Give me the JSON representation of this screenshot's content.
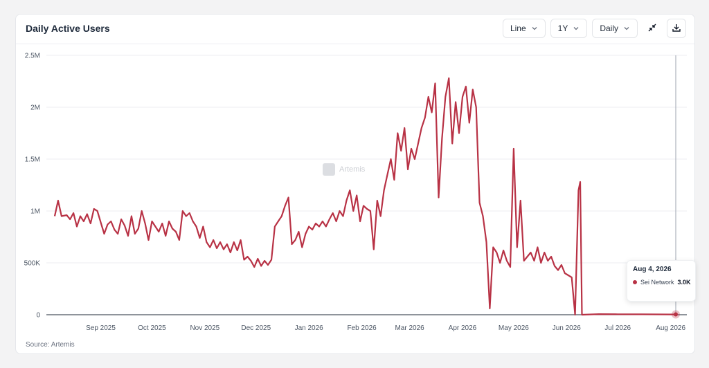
{
  "card": {
    "title": "Daily Active Users",
    "source": "Source: Artemis"
  },
  "controls": {
    "chart_type": "Line",
    "range": "1Y",
    "granularity": "Daily",
    "collapse_icon": "collapse-arrows-icon",
    "download_icon": "download-icon"
  },
  "tooltip": {
    "date": "Aug 4, 2026",
    "series": "Sei Network",
    "value": "3.0K"
  },
  "watermark": "Artemis",
  "colors": {
    "series": "#b83245",
    "grid": "#eceef1",
    "axis_text": "#4b5563"
  },
  "chart_data": {
    "type": "line",
    "title": "Daily Active Users",
    "xlabel": "",
    "ylabel": "",
    "ylim": [
      0,
      2500000
    ],
    "y_ticks": [
      {
        "value": 0,
        "label": "0"
      },
      {
        "value": 500000,
        "label": "500K"
      },
      {
        "value": 1000000,
        "label": "1M"
      },
      {
        "value": 1500000,
        "label": "1.5M"
      },
      {
        "value": 2000000,
        "label": "2M"
      },
      {
        "value": 2500000,
        "label": "2.5M"
      }
    ],
    "x_range": [
      "2025-08-05",
      "2026-08-04"
    ],
    "x_ticks": [
      {
        "date": "2025-09-01",
        "label": "Sep 2025"
      },
      {
        "date": "2025-10-01",
        "label": "Oct 2025"
      },
      {
        "date": "2025-11-01",
        "label": "Nov 2025"
      },
      {
        "date": "2025-12-01",
        "label": "Dec 2025"
      },
      {
        "date": "2026-01-01",
        "label": "Jan 2026"
      },
      {
        "date": "2026-02-01",
        "label": "Feb 2026"
      },
      {
        "date": "2026-03-01",
        "label": "Mar 2026"
      },
      {
        "date": "2026-04-01",
        "label": "Apr 2026"
      },
      {
        "date": "2026-05-01",
        "label": "May 2026"
      },
      {
        "date": "2026-06-01",
        "label": "Jun 2026"
      },
      {
        "date": "2026-07-01",
        "label": "Jul 2026"
      },
      {
        "date": "2026-08-01",
        "label": "Aug 2026"
      }
    ],
    "grid": true,
    "legend": "none",
    "series": [
      {
        "name": "Sei Network",
        "color": "#b83245",
        "points": [
          [
            "2025-08-05",
            950000
          ],
          [
            "2025-08-07",
            1100000
          ],
          [
            "2025-08-09",
            950000
          ],
          [
            "2025-08-12",
            960000
          ],
          [
            "2025-08-14",
            920000
          ],
          [
            "2025-08-16",
            980000
          ],
          [
            "2025-08-18",
            850000
          ],
          [
            "2025-08-20",
            950000
          ],
          [
            "2025-08-22",
            900000
          ],
          [
            "2025-08-24",
            970000
          ],
          [
            "2025-08-26",
            880000
          ],
          [
            "2025-08-28",
            1020000
          ],
          [
            "2025-08-30",
            1000000
          ],
          [
            "2025-09-01",
            890000
          ],
          [
            "2025-09-03",
            780000
          ],
          [
            "2025-09-05",
            870000
          ],
          [
            "2025-09-07",
            900000
          ],
          [
            "2025-09-09",
            820000
          ],
          [
            "2025-09-11",
            780000
          ],
          [
            "2025-09-13",
            920000
          ],
          [
            "2025-09-15",
            860000
          ],
          [
            "2025-09-17",
            760000
          ],
          [
            "2025-09-19",
            950000
          ],
          [
            "2025-09-21",
            780000
          ],
          [
            "2025-09-23",
            830000
          ],
          [
            "2025-09-25",
            1000000
          ],
          [
            "2025-09-27",
            880000
          ],
          [
            "2025-09-29",
            720000
          ],
          [
            "2025-10-01",
            900000
          ],
          [
            "2025-10-03",
            850000
          ],
          [
            "2025-10-05",
            800000
          ],
          [
            "2025-10-07",
            880000
          ],
          [
            "2025-10-09",
            760000
          ],
          [
            "2025-10-11",
            900000
          ],
          [
            "2025-10-13",
            830000
          ],
          [
            "2025-10-15",
            800000
          ],
          [
            "2025-10-17",
            720000
          ],
          [
            "2025-10-19",
            1000000
          ],
          [
            "2025-10-21",
            950000
          ],
          [
            "2025-10-23",
            980000
          ],
          [
            "2025-10-25",
            900000
          ],
          [
            "2025-10-27",
            850000
          ],
          [
            "2025-10-29",
            740000
          ],
          [
            "2025-10-31",
            850000
          ],
          [
            "2025-11-02",
            700000
          ],
          [
            "2025-11-04",
            650000
          ],
          [
            "2025-11-06",
            720000
          ],
          [
            "2025-11-08",
            640000
          ],
          [
            "2025-11-10",
            700000
          ],
          [
            "2025-11-12",
            630000
          ],
          [
            "2025-11-14",
            680000
          ],
          [
            "2025-11-16",
            600000
          ],
          [
            "2025-11-18",
            700000
          ],
          [
            "2025-11-20",
            620000
          ],
          [
            "2025-11-22",
            720000
          ],
          [
            "2025-11-24",
            530000
          ],
          [
            "2025-11-26",
            560000
          ],
          [
            "2025-11-28",
            520000
          ],
          [
            "2025-11-30",
            460000
          ],
          [
            "2025-12-02",
            540000
          ],
          [
            "2025-12-04",
            470000
          ],
          [
            "2025-12-06",
            520000
          ],
          [
            "2025-12-08",
            480000
          ],
          [
            "2025-12-10",
            530000
          ],
          [
            "2025-12-12",
            850000
          ],
          [
            "2025-12-14",
            900000
          ],
          [
            "2025-12-16",
            950000
          ],
          [
            "2025-12-18",
            1050000
          ],
          [
            "2025-12-20",
            1130000
          ],
          [
            "2025-12-22",
            680000
          ],
          [
            "2025-12-24",
            720000
          ],
          [
            "2025-12-26",
            800000
          ],
          [
            "2025-12-28",
            650000
          ],
          [
            "2025-12-30",
            780000
          ],
          [
            "2026-01-01",
            850000
          ],
          [
            "2026-01-03",
            820000
          ],
          [
            "2026-01-05",
            880000
          ],
          [
            "2026-01-07",
            850000
          ],
          [
            "2026-01-09",
            900000
          ],
          [
            "2026-01-11",
            850000
          ],
          [
            "2026-01-13",
            920000
          ],
          [
            "2026-01-15",
            980000
          ],
          [
            "2026-01-17",
            900000
          ],
          [
            "2026-01-19",
            1000000
          ],
          [
            "2026-01-21",
            950000
          ],
          [
            "2026-01-23",
            1100000
          ],
          [
            "2026-01-25",
            1200000
          ],
          [
            "2026-01-27",
            1000000
          ],
          [
            "2026-01-29",
            1150000
          ],
          [
            "2026-01-31",
            900000
          ],
          [
            "2026-02-02",
            1050000
          ],
          [
            "2026-02-04",
            1020000
          ],
          [
            "2026-02-06",
            1000000
          ],
          [
            "2026-02-08",
            630000
          ],
          [
            "2026-02-10",
            1100000
          ],
          [
            "2026-02-12",
            950000
          ],
          [
            "2026-02-14",
            1200000
          ],
          [
            "2026-02-16",
            1350000
          ],
          [
            "2026-02-18",
            1500000
          ],
          [
            "2026-02-20",
            1300000
          ],
          [
            "2026-02-22",
            1750000
          ],
          [
            "2026-02-24",
            1580000
          ],
          [
            "2026-02-26",
            1800000
          ],
          [
            "2026-02-28",
            1400000
          ],
          [
            "2026-03-02",
            1600000
          ],
          [
            "2026-03-04",
            1500000
          ],
          [
            "2026-03-06",
            1650000
          ],
          [
            "2026-03-08",
            1800000
          ],
          [
            "2026-03-10",
            1900000
          ],
          [
            "2026-03-12",
            2100000
          ],
          [
            "2026-03-14",
            1950000
          ],
          [
            "2026-03-16",
            2230000
          ],
          [
            "2026-03-18",
            1130000
          ],
          [
            "2026-03-20",
            1700000
          ],
          [
            "2026-03-22",
            2100000
          ],
          [
            "2026-03-24",
            2280000
          ],
          [
            "2026-03-26",
            1650000
          ],
          [
            "2026-03-28",
            2050000
          ],
          [
            "2026-03-30",
            1750000
          ],
          [
            "2026-04-01",
            2100000
          ],
          [
            "2026-04-03",
            2200000
          ],
          [
            "2026-04-05",
            1850000
          ],
          [
            "2026-04-07",
            2170000
          ],
          [
            "2026-04-09",
            2000000
          ],
          [
            "2026-04-11",
            1080000
          ],
          [
            "2026-04-13",
            950000
          ],
          [
            "2026-04-15",
            700000
          ],
          [
            "2026-04-17",
            60000
          ],
          [
            "2026-04-19",
            650000
          ],
          [
            "2026-04-21",
            600000
          ],
          [
            "2026-04-23",
            500000
          ],
          [
            "2026-04-25",
            620000
          ],
          [
            "2026-04-27",
            520000
          ],
          [
            "2026-04-29",
            460000
          ],
          [
            "2026-05-01",
            1600000
          ],
          [
            "2026-05-03",
            650000
          ],
          [
            "2026-05-05",
            1100000
          ],
          [
            "2026-05-07",
            520000
          ],
          [
            "2026-05-09",
            560000
          ],
          [
            "2026-05-11",
            600000
          ],
          [
            "2026-05-13",
            520000
          ],
          [
            "2026-05-15",
            650000
          ],
          [
            "2026-05-17",
            500000
          ],
          [
            "2026-05-19",
            600000
          ],
          [
            "2026-05-21",
            520000
          ],
          [
            "2026-05-23",
            560000
          ],
          [
            "2026-05-25",
            470000
          ],
          [
            "2026-05-27",
            430000
          ],
          [
            "2026-05-29",
            480000
          ],
          [
            "2026-05-31",
            400000
          ],
          [
            "2026-06-02",
            380000
          ],
          [
            "2026-06-04",
            360000
          ],
          [
            "2026-06-06",
            0
          ],
          [
            "2026-06-08",
            1200000
          ],
          [
            "2026-06-09",
            1280000
          ],
          [
            "2026-06-10",
            0
          ],
          [
            "2026-06-20",
            6000
          ],
          [
            "2026-07-01",
            5000
          ],
          [
            "2026-07-15",
            4000
          ],
          [
            "2026-08-04",
            3000
          ]
        ]
      }
    ],
    "highlight": {
      "date": "2026-08-04",
      "value": 3000,
      "series": "Sei Network"
    }
  }
}
